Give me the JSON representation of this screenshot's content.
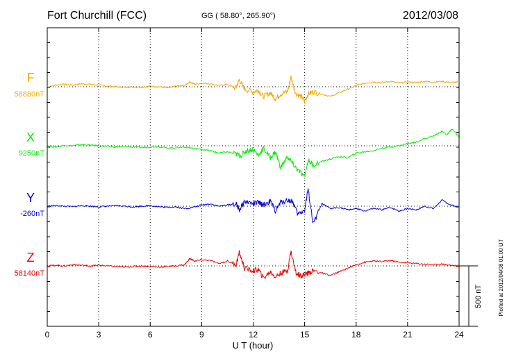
{
  "header": {
    "station": "Fort Churchill (FCC)",
    "coords": "GG ( 58.80°, 265.90°)",
    "date": "2012/03/08"
  },
  "side_note": "Plotted at 2012/04/08 01:00 UT",
  "scale_label": "500 nT",
  "chart_data": {
    "type": "line",
    "xlabel": "U T (hour)",
    "xlim": [
      0,
      24
    ],
    "xticks": [
      0,
      3,
      6,
      9,
      12,
      15,
      18,
      21,
      24
    ],
    "grid": true,
    "scale_bar_nT": 500,
    "series": [
      {
        "name": "F",
        "baseline_label": "58880nT",
        "color": "#f5a800",
        "x": [
          0,
          0.5,
          1,
          1.5,
          2,
          2.5,
          3,
          3.5,
          4,
          4.5,
          5,
          5.5,
          6,
          6.5,
          7,
          7.5,
          8,
          8.3,
          8.6,
          9,
          9.5,
          10,
          10.5,
          11,
          11.2,
          11.5,
          12,
          12.3,
          12.6,
          13,
          13.3,
          13.6,
          14,
          14.2,
          14.5,
          14.8,
          15,
          15.2,
          15.5,
          16,
          16.5,
          17,
          17.5,
          18,
          18.5,
          19,
          19.5,
          20,
          20.5,
          21,
          21.5,
          22,
          22.5,
          23,
          23.5,
          24
        ],
        "y": [
          0,
          15,
          20,
          15,
          25,
          20,
          15,
          5,
          0,
          -5,
          0,
          -5,
          5,
          0,
          -10,
          5,
          10,
          40,
          20,
          30,
          25,
          10,
          20,
          -10,
          60,
          -20,
          -40,
          -30,
          -80,
          -50,
          -100,
          -60,
          -40,
          80,
          -60,
          -80,
          -120,
          -60,
          -40,
          -60,
          -80,
          -50,
          -20,
          10,
          30,
          40,
          35,
          45,
          30,
          40,
          35,
          45,
          40,
          45,
          35,
          40
        ]
      },
      {
        "name": "X",
        "baseline_label": "9250nT",
        "color": "#00ee00",
        "x": [
          0,
          0.5,
          1,
          1.5,
          2,
          2.5,
          3,
          3.5,
          4,
          4.5,
          5,
          5.5,
          6,
          6.5,
          7,
          7.5,
          8,
          8.5,
          9,
          9.5,
          10,
          10.5,
          11,
          11.3,
          11.6,
          12,
          12.3,
          12.6,
          13,
          13.3,
          13.6,
          14,
          14.3,
          14.6,
          15,
          15.2,
          15.5,
          16,
          16.5,
          17,
          17.5,
          18,
          18.5,
          19,
          19.5,
          20,
          20.5,
          21,
          21.5,
          22,
          22.5,
          23,
          23.3,
          23.6,
          24
        ],
        "y": [
          0,
          -10,
          5,
          0,
          10,
          5,
          0,
          -5,
          -10,
          -5,
          -10,
          -15,
          -10,
          -5,
          -20,
          -15,
          -10,
          -20,
          -30,
          -40,
          -60,
          -50,
          -70,
          -80,
          -40,
          -30,
          -80,
          -20,
          -100,
          -50,
          -180,
          -90,
          -150,
          -200,
          -260,
          -120,
          -160,
          -130,
          -110,
          -90,
          -100,
          -60,
          -50,
          -40,
          -20,
          -10,
          0,
          20,
          30,
          60,
          80,
          120,
          90,
          140,
          70
        ]
      },
      {
        "name": "Y",
        "baseline_label": "-260nT",
        "color": "#0000dd",
        "x": [
          0,
          0.5,
          1,
          1.5,
          2,
          2.5,
          3,
          3.5,
          4,
          4.5,
          5,
          5.5,
          6,
          6.5,
          7,
          7.5,
          8,
          8.5,
          9,
          9.5,
          10,
          10.5,
          11,
          11.2,
          11.5,
          12,
          12.3,
          12.6,
          13,
          13.3,
          13.6,
          14,
          14.3,
          14.6,
          15,
          15.2,
          15.5,
          16,
          16.5,
          17,
          17.5,
          18,
          18.5,
          19,
          19.5,
          20,
          20.5,
          21,
          21.5,
          22,
          22.5,
          23,
          23.5,
          24
        ],
        "y": [
          0,
          5,
          0,
          -5,
          5,
          0,
          -5,
          0,
          5,
          0,
          -5,
          0,
          5,
          -5,
          -10,
          -5,
          -20,
          -10,
          10,
          20,
          0,
          10,
          20,
          -30,
          40,
          20,
          30,
          10,
          40,
          -40,
          30,
          50,
          40,
          -70,
          -30,
          140,
          -150,
          20,
          -20,
          -10,
          -30,
          -20,
          -40,
          -20,
          -30,
          -10,
          -40,
          -20,
          -30,
          0,
          -20,
          50,
          10,
          -10
        ]
      },
      {
        "name": "Z",
        "baseline_label": "58140nT",
        "color": "#ee0000",
        "x": [
          0,
          0.5,
          1,
          1.5,
          2,
          2.5,
          3,
          3.5,
          4,
          4.5,
          5,
          5.5,
          6,
          6.5,
          7,
          7.5,
          8,
          8.3,
          8.6,
          9,
          9.5,
          10,
          10.5,
          11,
          11.2,
          11.5,
          12,
          12.3,
          12.6,
          13,
          13.3,
          13.6,
          14,
          14.2,
          14.5,
          14.8,
          15,
          15.2,
          15.5,
          16,
          16.5,
          17,
          17.5,
          18,
          18.5,
          19,
          19.5,
          20,
          20.5,
          21,
          21.5,
          22,
          22.5,
          23,
          23.5,
          24
        ],
        "y": [
          0,
          5,
          0,
          10,
          5,
          0,
          5,
          0,
          -5,
          -10,
          -5,
          0,
          -5,
          -10,
          -5,
          0,
          10,
          60,
          40,
          50,
          45,
          20,
          40,
          10,
          110,
          -20,
          -40,
          -30,
          -100,
          -50,
          -90,
          -60,
          -40,
          120,
          -60,
          -80,
          -70,
          -60,
          -40,
          -60,
          -80,
          -50,
          -20,
          10,
          30,
          40,
          35,
          45,
          30,
          25,
          20,
          15,
          10,
          15,
          5,
          0
        ]
      }
    ]
  }
}
